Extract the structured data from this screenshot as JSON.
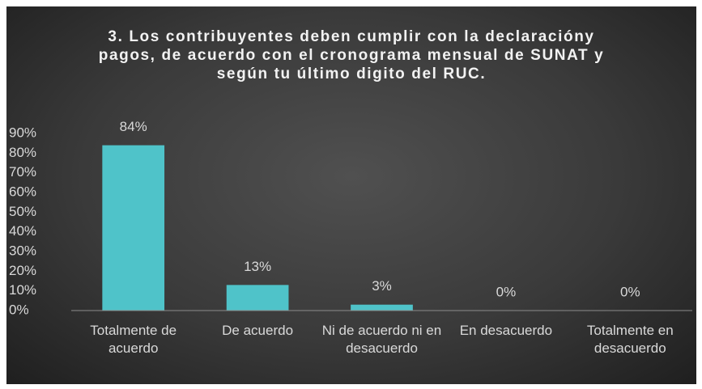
{
  "chart_data": {
    "type": "bar",
    "title": "3.  Los contribuyentes deben cumplir con la declaracióny pagos, de acuerdo con el cronograma mensual de SUNAT y según tu último digito del RUC.",
    "categories": [
      "Totalmente de acuerdo",
      "De acuerdo",
      "Ni de acuerdo ni en desacuerdo",
      "En desacuerdo",
      "Totalmente en desacuerdo"
    ],
    "values": [
      84,
      13,
      3,
      0,
      0
    ],
    "value_labels": [
      "84%",
      "13%",
      "3%",
      "0%",
      "0%"
    ],
    "color": "#4fc3c9",
    "ylim": [
      0,
      90
    ],
    "yticks": [
      {
        "value": 0,
        "label": "0%"
      },
      {
        "value": 10,
        "label": "10%"
      },
      {
        "value": 20,
        "label": "20%"
      },
      {
        "value": 30,
        "label": "30%"
      },
      {
        "value": 40,
        "label": "40%"
      },
      {
        "value": 50,
        "label": "50%"
      },
      {
        "value": 60,
        "label": "60%"
      },
      {
        "value": 70,
        "label": "70%"
      },
      {
        "value": 80,
        "label": "80%"
      },
      {
        "value": 90,
        "label": "90%"
      }
    ],
    "grid": false
  }
}
